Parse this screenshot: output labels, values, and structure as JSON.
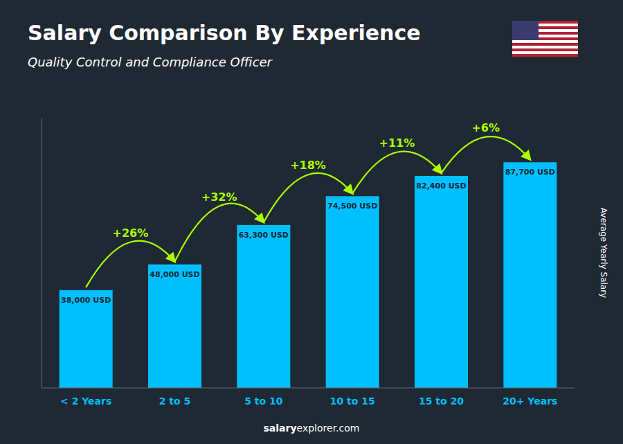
{
  "chart_data": {
    "type": "bar",
    "title": "Salary Comparison By Experience",
    "subtitle": "Quality Control and Compliance Officer",
    "ylabel": "Average Yearly Salary",
    "categories": [
      "< 2 Years",
      "2 to 5",
      "5 to 10",
      "10 to 15",
      "15 to 20",
      "20+ Years"
    ],
    "values": [
      38000,
      48000,
      63300,
      74500,
      82400,
      87700
    ],
    "value_labels": [
      "38,000 USD",
      "48,000 USD",
      "63,300 USD",
      "74,500 USD",
      "82,400 USD",
      "87,700 USD"
    ],
    "data_labels": true,
    "annotations": [
      "+26%",
      "+32%",
      "+18%",
      "+11%",
      "+6%"
    ],
    "footer": [
      "salary",
      "explorer.com"
    ],
    "color": "#00BFFF",
    "ylim": [
      0,
      105000
    ],
    "grid": false,
    "tick_labels": "x"
  }
}
